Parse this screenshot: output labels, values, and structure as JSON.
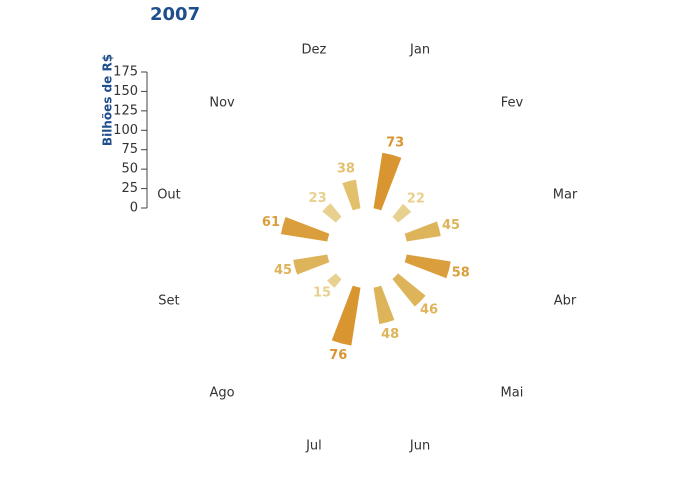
{
  "chart_data": {
    "type": "polar-bar",
    "title": "2007",
    "y_label": "Bilhões de R$",
    "categories": [
      "Jan",
      "Fev",
      "Mar",
      "Abr",
      "Mai",
      "Jun",
      "Jul",
      "Ago",
      "Set",
      "Out",
      "Nov",
      "Dez"
    ],
    "values": [
      73,
      22,
      45,
      58,
      46,
      48,
      76,
      15,
      45,
      61,
      23,
      38
    ],
    "colors": [
      "#d9952f",
      "#e8d08e",
      "#deb45a",
      "#da9f3c",
      "#deb45a",
      "#deb45a",
      "#d9952f",
      "#e8d08e",
      "#deb45a",
      "#da9f3c",
      "#e8d08e",
      "#e3c06c"
    ],
    "rlim": [
      0,
      175
    ],
    "rticks": [
      0,
      25,
      50,
      75,
      100,
      125,
      150,
      175
    ]
  }
}
